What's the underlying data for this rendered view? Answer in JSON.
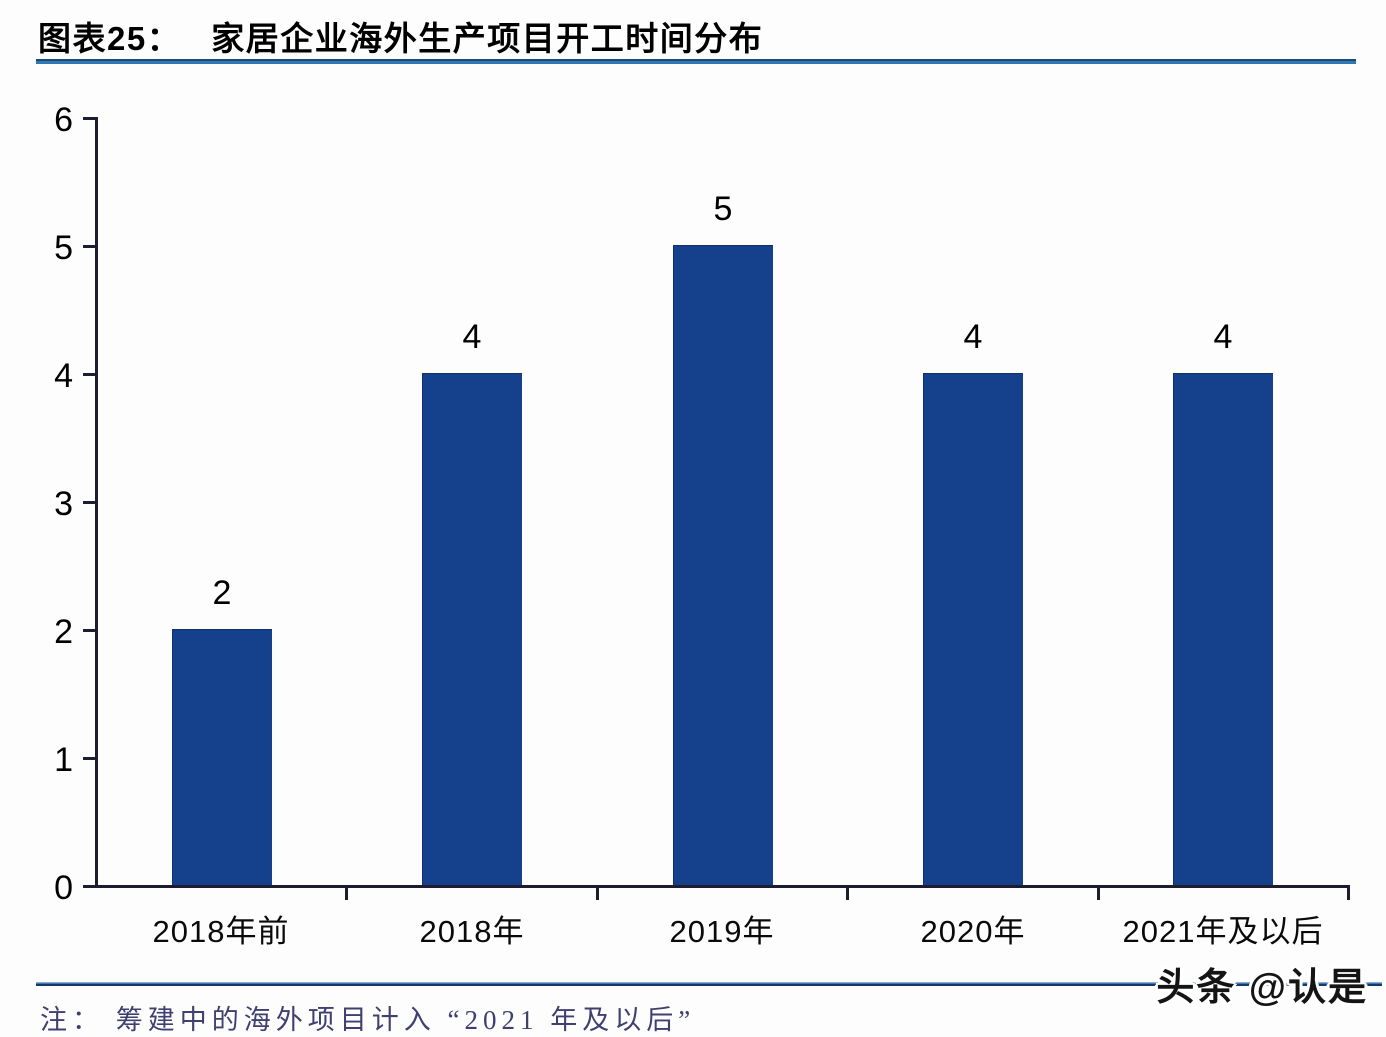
{
  "header": {
    "figure_label": "图表25：",
    "title": "家居企业海外生产项目开工时间分布"
  },
  "chart_data": {
    "type": "bar",
    "categories": [
      "2018年前",
      "2018年",
      "2019年",
      "2020年",
      "2021年及以后"
    ],
    "values": [
      2,
      4,
      5,
      4,
      4
    ],
    "data_labels": [
      "2",
      "4",
      "5",
      "4",
      "4"
    ],
    "title": "家居企业海外生产项目开工时间分布",
    "xlabel": "",
    "ylabel": "",
    "ylim": [
      0,
      6
    ],
    "yticks": [
      0,
      1,
      2,
      3,
      4,
      5,
      6
    ],
    "grid": false,
    "legend": "none",
    "bar_color": "#14408c"
  },
  "footnote": {
    "text": "注： 筹建中的海外项目计入 “2021 年及以后”"
  },
  "watermark": {
    "text": "头条 @认是"
  },
  "colors": {
    "bar": "#14408c",
    "axis": "#1d1d30",
    "footnote_text": "#3f3f70",
    "title_rule_top": "#1a4971",
    "title_rule_bottom": "#3077b6",
    "bottom_rule_top": "#7fb2e0",
    "bottom_rule_bottom": "#173a66"
  }
}
